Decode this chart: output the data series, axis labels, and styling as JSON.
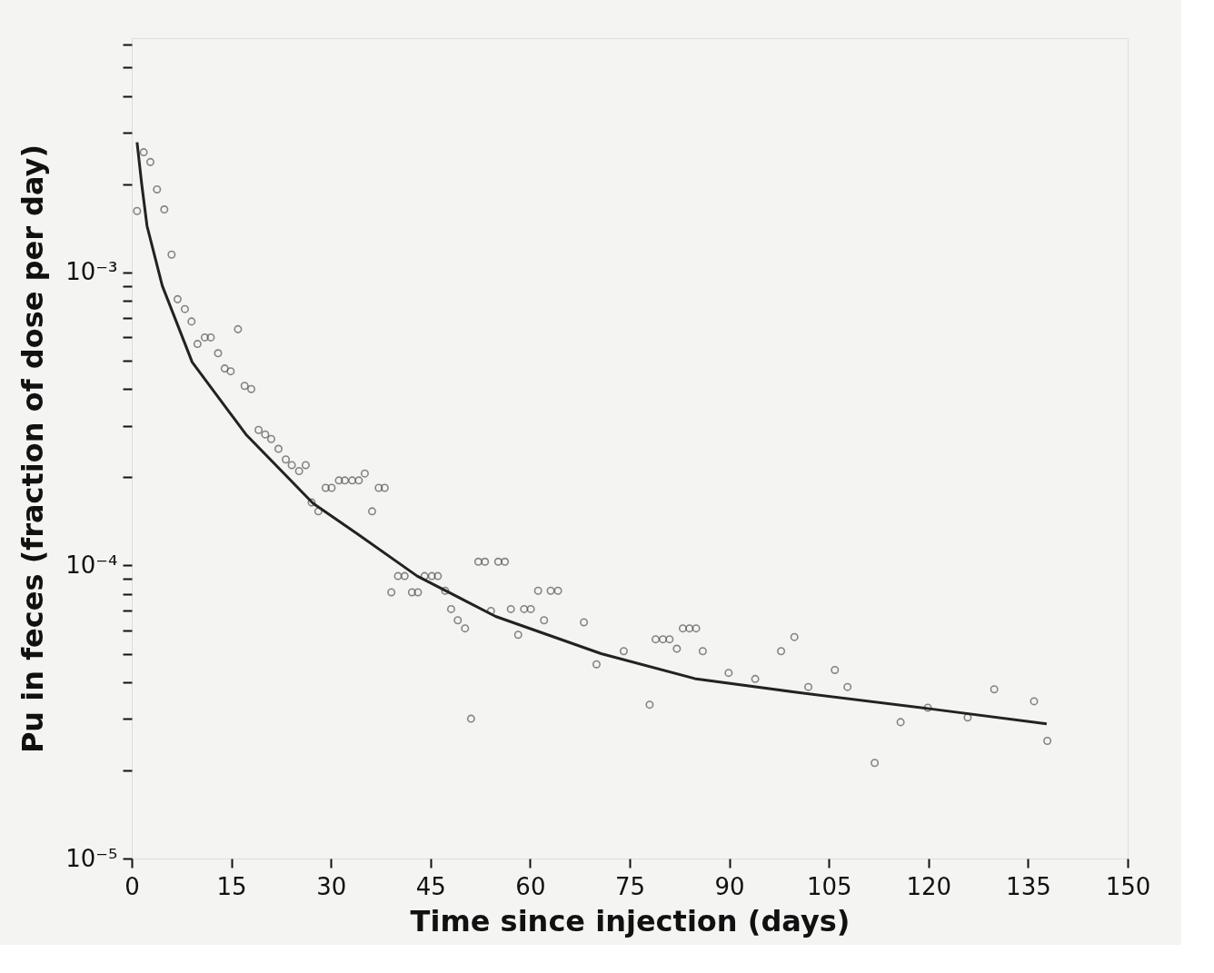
{
  "chart_data": {
    "type": "scatter",
    "xlabel": "Time since injection (days)",
    "ylabel": "Pu in feces (fraction of dose per day)",
    "log": "y",
    "grid": false,
    "xlim": [
      0,
      150
    ],
    "xticks": [
      0,
      15,
      30,
      45,
      60,
      75,
      90,
      105,
      120,
      135,
      150
    ],
    "ylim": [
      1e-05,
      0.0063
    ],
    "yticks": [
      {
        "value": 1e-05,
        "label": "10⁻⁵"
      },
      {
        "value": 2e-05,
        "label": null
      },
      {
        "value": 3e-05,
        "label": null
      },
      {
        "value": 4e-05,
        "label": null
      },
      {
        "value": 5e-05,
        "label": null
      },
      {
        "value": 6e-05,
        "label": null
      },
      {
        "value": 7e-05,
        "label": null
      },
      {
        "value": 8e-05,
        "label": null
      },
      {
        "value": 9e-05,
        "label": null
      },
      {
        "value": 0.0001,
        "label": "10⁻⁴"
      },
      {
        "value": 0.0002,
        "label": null
      },
      {
        "value": 0.0003,
        "label": null
      },
      {
        "value": 0.0004,
        "label": null
      },
      {
        "value": 0.0005,
        "label": null
      },
      {
        "value": 0.0006,
        "label": null
      },
      {
        "value": 0.0007,
        "label": null
      },
      {
        "value": 0.0008,
        "label": null
      },
      {
        "value": 0.0009,
        "label": null
      },
      {
        "value": 0.001,
        "label": "10⁻³"
      },
      {
        "value": 0.002,
        "label": null
      },
      {
        "value": 0.003,
        "label": null
      },
      {
        "value": 0.004,
        "label": null
      },
      {
        "value": 0.005,
        "label": null
      },
      {
        "value": 0.006,
        "label": null
      }
    ],
    "series": [
      {
        "marker": "circle",
        "color": "#555555",
        "x": [
          0.8,
          1.8,
          2.8,
          3.8,
          4.9,
          6.0,
          6.9,
          8.0,
          9.0,
          9.9,
          11.0,
          11.9,
          13.0,
          14.0,
          14.9,
          16.0,
          17.0,
          18.0,
          19.1,
          20.1,
          21.0,
          22.1,
          23.2,
          24.1,
          25.2,
          26.2,
          27.1,
          28.1,
          29.2,
          30.1,
          31.2,
          32.1,
          33.2,
          34.2,
          35.1,
          36.2,
          37.2,
          38.1,
          39.1,
          40.1,
          41.1,
          42.2,
          43.1,
          44.1,
          45.2,
          46.1,
          47.2,
          48.1,
          49.1,
          50.2,
          51.1,
          52.2,
          53.2,
          54.1,
          55.2,
          56.2,
          57.1,
          58.2,
          59.1,
          60.1,
          61.2,
          62.1,
          63.1,
          64.2,
          68.1,
          70.0,
          74.1,
          78.0,
          78.9,
          80.0,
          81.0,
          82.1,
          83.0,
          84.0,
          85.0,
          86.0,
          89.9,
          93.9,
          97.8,
          99.8,
          101.9,
          105.9,
          107.8,
          111.9,
          115.8,
          119.9,
          125.9,
          129.9,
          135.9,
          137.9
        ],
        "values": [
          0.00162,
          0.00257,
          0.00238,
          0.00192,
          0.00164,
          0.00115,
          0.00081,
          0.00075,
          0.00068,
          0.00057,
          0.0006,
          0.0006,
          0.00053,
          0.00047,
          0.00046,
          0.00064,
          0.00041,
          0.0004,
          0.00029,
          0.00028,
          0.00027,
          0.00025,
          0.00023,
          0.00022,
          0.00021,
          0.00022,
          0.000164,
          0.000153,
          0.000184,
          0.000184,
          0.000195,
          0.000195,
          0.000195,
          0.000195,
          0.000206,
          0.000153,
          0.000184,
          0.000184,
          8.1e-05,
          9.2e-05,
          9.2e-05,
          8.1e-05,
          8.1e-05,
          9.2e-05,
          9.2e-05,
          9.2e-05,
          8.2e-05,
          7.1e-05,
          6.5e-05,
          6.1e-05,
          3e-05,
          0.000103,
          0.000103,
          7e-05,
          0.000103,
          0.000103,
          7.1e-05,
          5.8e-05,
          7.1e-05,
          7.1e-05,
          8.2e-05,
          6.5e-05,
          8.2e-05,
          8.2e-05,
          6.4e-05,
          4.6e-05,
          5.1e-05,
          3.35e-05,
          5.6e-05,
          5.6e-05,
          5.6e-05,
          5.2e-05,
          6.1e-05,
          6.1e-05,
          6.1e-05,
          5.1e-05,
          4.3e-05,
          4.1e-05,
          5.1e-05,
          5.7e-05,
          3.85e-05,
          4.4e-05,
          3.85e-05,
          2.12e-05,
          2.92e-05,
          3.27e-05,
          3.03e-05,
          3.78e-05,
          3.44e-05,
          2.52e-05
        ]
      },
      {
        "type": "line",
        "marker": "none",
        "line_style": "solid",
        "color": "#222222",
        "x": [
          0.8,
          1.5,
          2.3,
          4.6,
          9.1,
          17.2,
          27.3,
          34.0,
          43.0,
          54.8,
          70.7,
          85.0,
          100.9,
          119.9,
          137.8
        ],
        "values": [
          0.00278,
          0.002,
          0.00144,
          0.0009,
          0.000494,
          0.00028,
          0.000163,
          0.000128,
          9.2e-05,
          6.7e-05,
          5e-05,
          4.1e-05,
          3.67e-05,
          3.25e-05,
          2.88e-05
        ]
      }
    ]
  }
}
